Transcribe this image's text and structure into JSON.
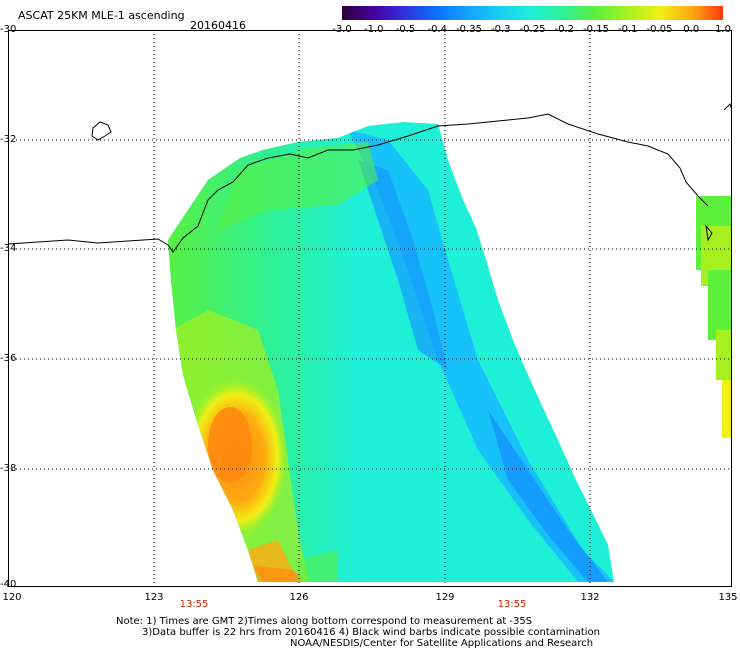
{
  "header": {
    "title": "ASCAT 25KM MLE-1 ascending",
    "date": "20160416"
  },
  "colorbar": {
    "labels": [
      "-3.0",
      "-1.0",
      "-0.5",
      "-0.4",
      "-0.35",
      "-0.3",
      "-0.25",
      "-0.2",
      "-0.15",
      "-0.1",
      "-0.05",
      "0.0",
      "1.0"
    ],
    "colors": [
      "#2a0038",
      "#4a00a0",
      "#2f33e0",
      "#0a72ff",
      "#15a5ff",
      "#18d0f2",
      "#1ef0d8",
      "#2ef092",
      "#5cf03a",
      "#a6f020",
      "#f0f014",
      "#ffaa10",
      "#ff3a10"
    ]
  },
  "map": {
    "lat_labels": [
      "-30",
      "-32",
      "-34",
      "-36",
      "-38",
      "-40"
    ],
    "lon_labels": [
      "120",
      "123",
      "126",
      "129",
      "132",
      "135"
    ],
    "pass_times": [
      "13:55",
      "13:55"
    ]
  },
  "notes": {
    "line1": "Note: 1) Times are GMT 2)Times along bottom correspond to measurement at -35S",
    "line2": "3)Data buffer is 22 hrs from 20160416 4) Black wind barbs indicate possible contamination",
    "line3": "NOAA/NESDIS/Center for Satellite Applications and Research"
  }
}
